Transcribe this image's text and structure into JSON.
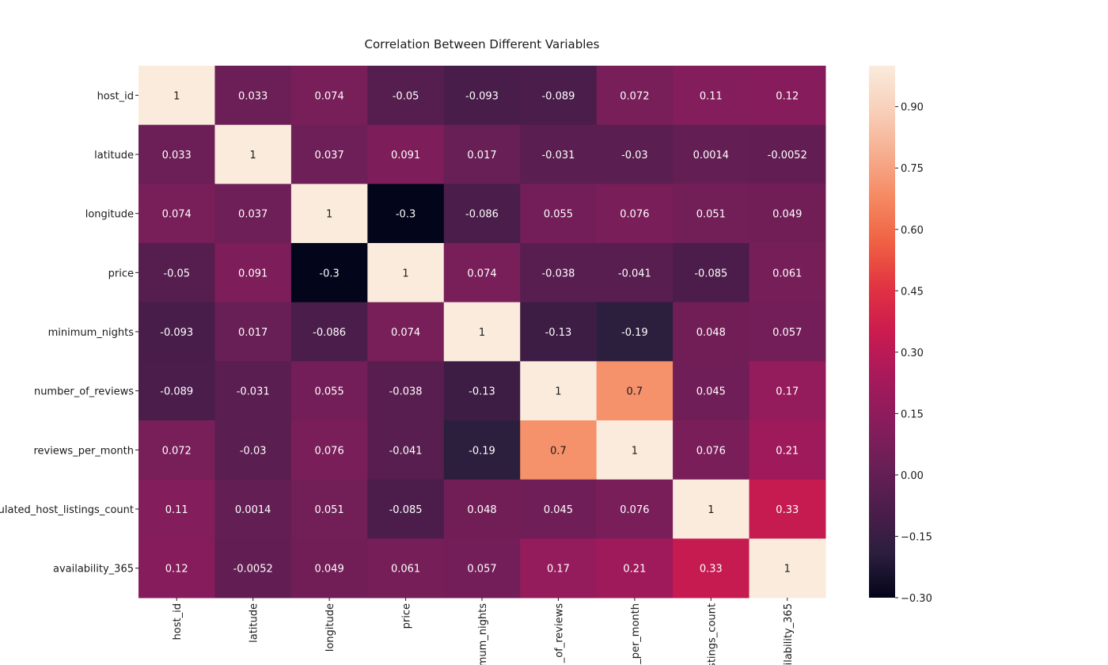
{
  "chart_data": {
    "type": "heatmap",
    "title": "Correlation Between Different Variables",
    "row_labels": [
      "host_id",
      "latitude",
      "longitude",
      "price",
      "minimum_nights",
      "number_of_reviews",
      "reviews_per_month",
      "ulated_host_listings_count",
      "availability_365"
    ],
    "col_labels": [
      "host_id",
      "latitude",
      "longitude",
      "price",
      "mum_nights",
      "_of_reviews",
      "_per_month",
      "stings_count",
      "ailability_365"
    ],
    "values": [
      [
        1,
        0.033,
        0.074,
        -0.05,
        -0.093,
        -0.089,
        0.072,
        0.11,
        0.12
      ],
      [
        0.033,
        1,
        0.037,
        0.091,
        0.017,
        -0.031,
        -0.03,
        0.0014,
        -0.0052
      ],
      [
        0.074,
        0.037,
        1,
        -0.3,
        -0.086,
        0.055,
        0.076,
        0.051,
        0.049
      ],
      [
        -0.05,
        0.091,
        -0.3,
        1,
        0.074,
        -0.038,
        -0.041,
        -0.085,
        0.061
      ],
      [
        -0.093,
        0.017,
        -0.086,
        0.074,
        1,
        -0.13,
        -0.19,
        0.048,
        0.057
      ],
      [
        -0.089,
        -0.031,
        0.055,
        -0.038,
        -0.13,
        1,
        0.7,
        0.045,
        0.17
      ],
      [
        0.072,
        -0.03,
        0.076,
        -0.041,
        -0.19,
        0.7,
        1,
        0.076,
        0.21
      ],
      [
        0.11,
        0.0014,
        0.051,
        -0.085,
        0.048,
        0.045,
        0.076,
        1,
        0.33
      ],
      [
        0.12,
        -0.0052,
        0.049,
        0.061,
        0.057,
        0.17,
        0.21,
        0.33,
        1
      ]
    ],
    "value_labels": [
      [
        "1",
        "0.033",
        "0.074",
        "-0.05",
        "-0.093",
        "-0.089",
        "0.072",
        "0.11",
        "0.12"
      ],
      [
        "0.033",
        "1",
        "0.037",
        "0.091",
        "0.017",
        "-0.031",
        "-0.03",
        "0.0014",
        "-0.0052"
      ],
      [
        "0.074",
        "0.037",
        "1",
        "-0.3",
        "-0.086",
        "0.055",
        "0.076",
        "0.051",
        "0.049"
      ],
      [
        "-0.05",
        "0.091",
        "-0.3",
        "1",
        "0.074",
        "-0.038",
        "-0.041",
        "-0.085",
        "0.061"
      ],
      [
        "-0.093",
        "0.017",
        "-0.086",
        "0.074",
        "1",
        "-0.13",
        "-0.19",
        "0.048",
        "0.057"
      ],
      [
        "-0.089",
        "-0.031",
        "0.055",
        "-0.038",
        "-0.13",
        "1",
        "0.7",
        "0.045",
        "0.17"
      ],
      [
        "0.072",
        "-0.03",
        "0.076",
        "-0.041",
        "-0.19",
        "0.7",
        "1",
        "0.076",
        "0.21"
      ],
      [
        "0.11",
        "0.0014",
        "0.051",
        "-0.085",
        "0.048",
        "0.045",
        "0.076",
        "1",
        "0.33"
      ],
      [
        "0.12",
        "-0.0052",
        "0.049",
        "0.061",
        "0.057",
        "0.17",
        "0.21",
        "0.33",
        "1"
      ]
    ],
    "colorbar": {
      "range": [
        -0.3,
        1.0
      ],
      "ticks": [
        -0.3,
        -0.15,
        0.0,
        0.15,
        0.3,
        0.45,
        0.6,
        0.75,
        0.9
      ],
      "tick_labels": [
        "−0.30",
        "−0.15",
        "0.00",
        "0.15",
        "0.30",
        "0.45",
        "0.60",
        "0.75",
        "0.90"
      ]
    },
    "colormap": "rocket",
    "colormap_stops": [
      "#03051a",
      "#2c1e3d",
      "#4c1d4b",
      "#6a1f56",
      "#8a1c5c",
      "#a8195b",
      "#cb1b4f",
      "#e13342",
      "#f06043",
      "#f58860",
      "#f6ad8f",
      "#f8d0ba",
      "#faebdd"
    ]
  }
}
